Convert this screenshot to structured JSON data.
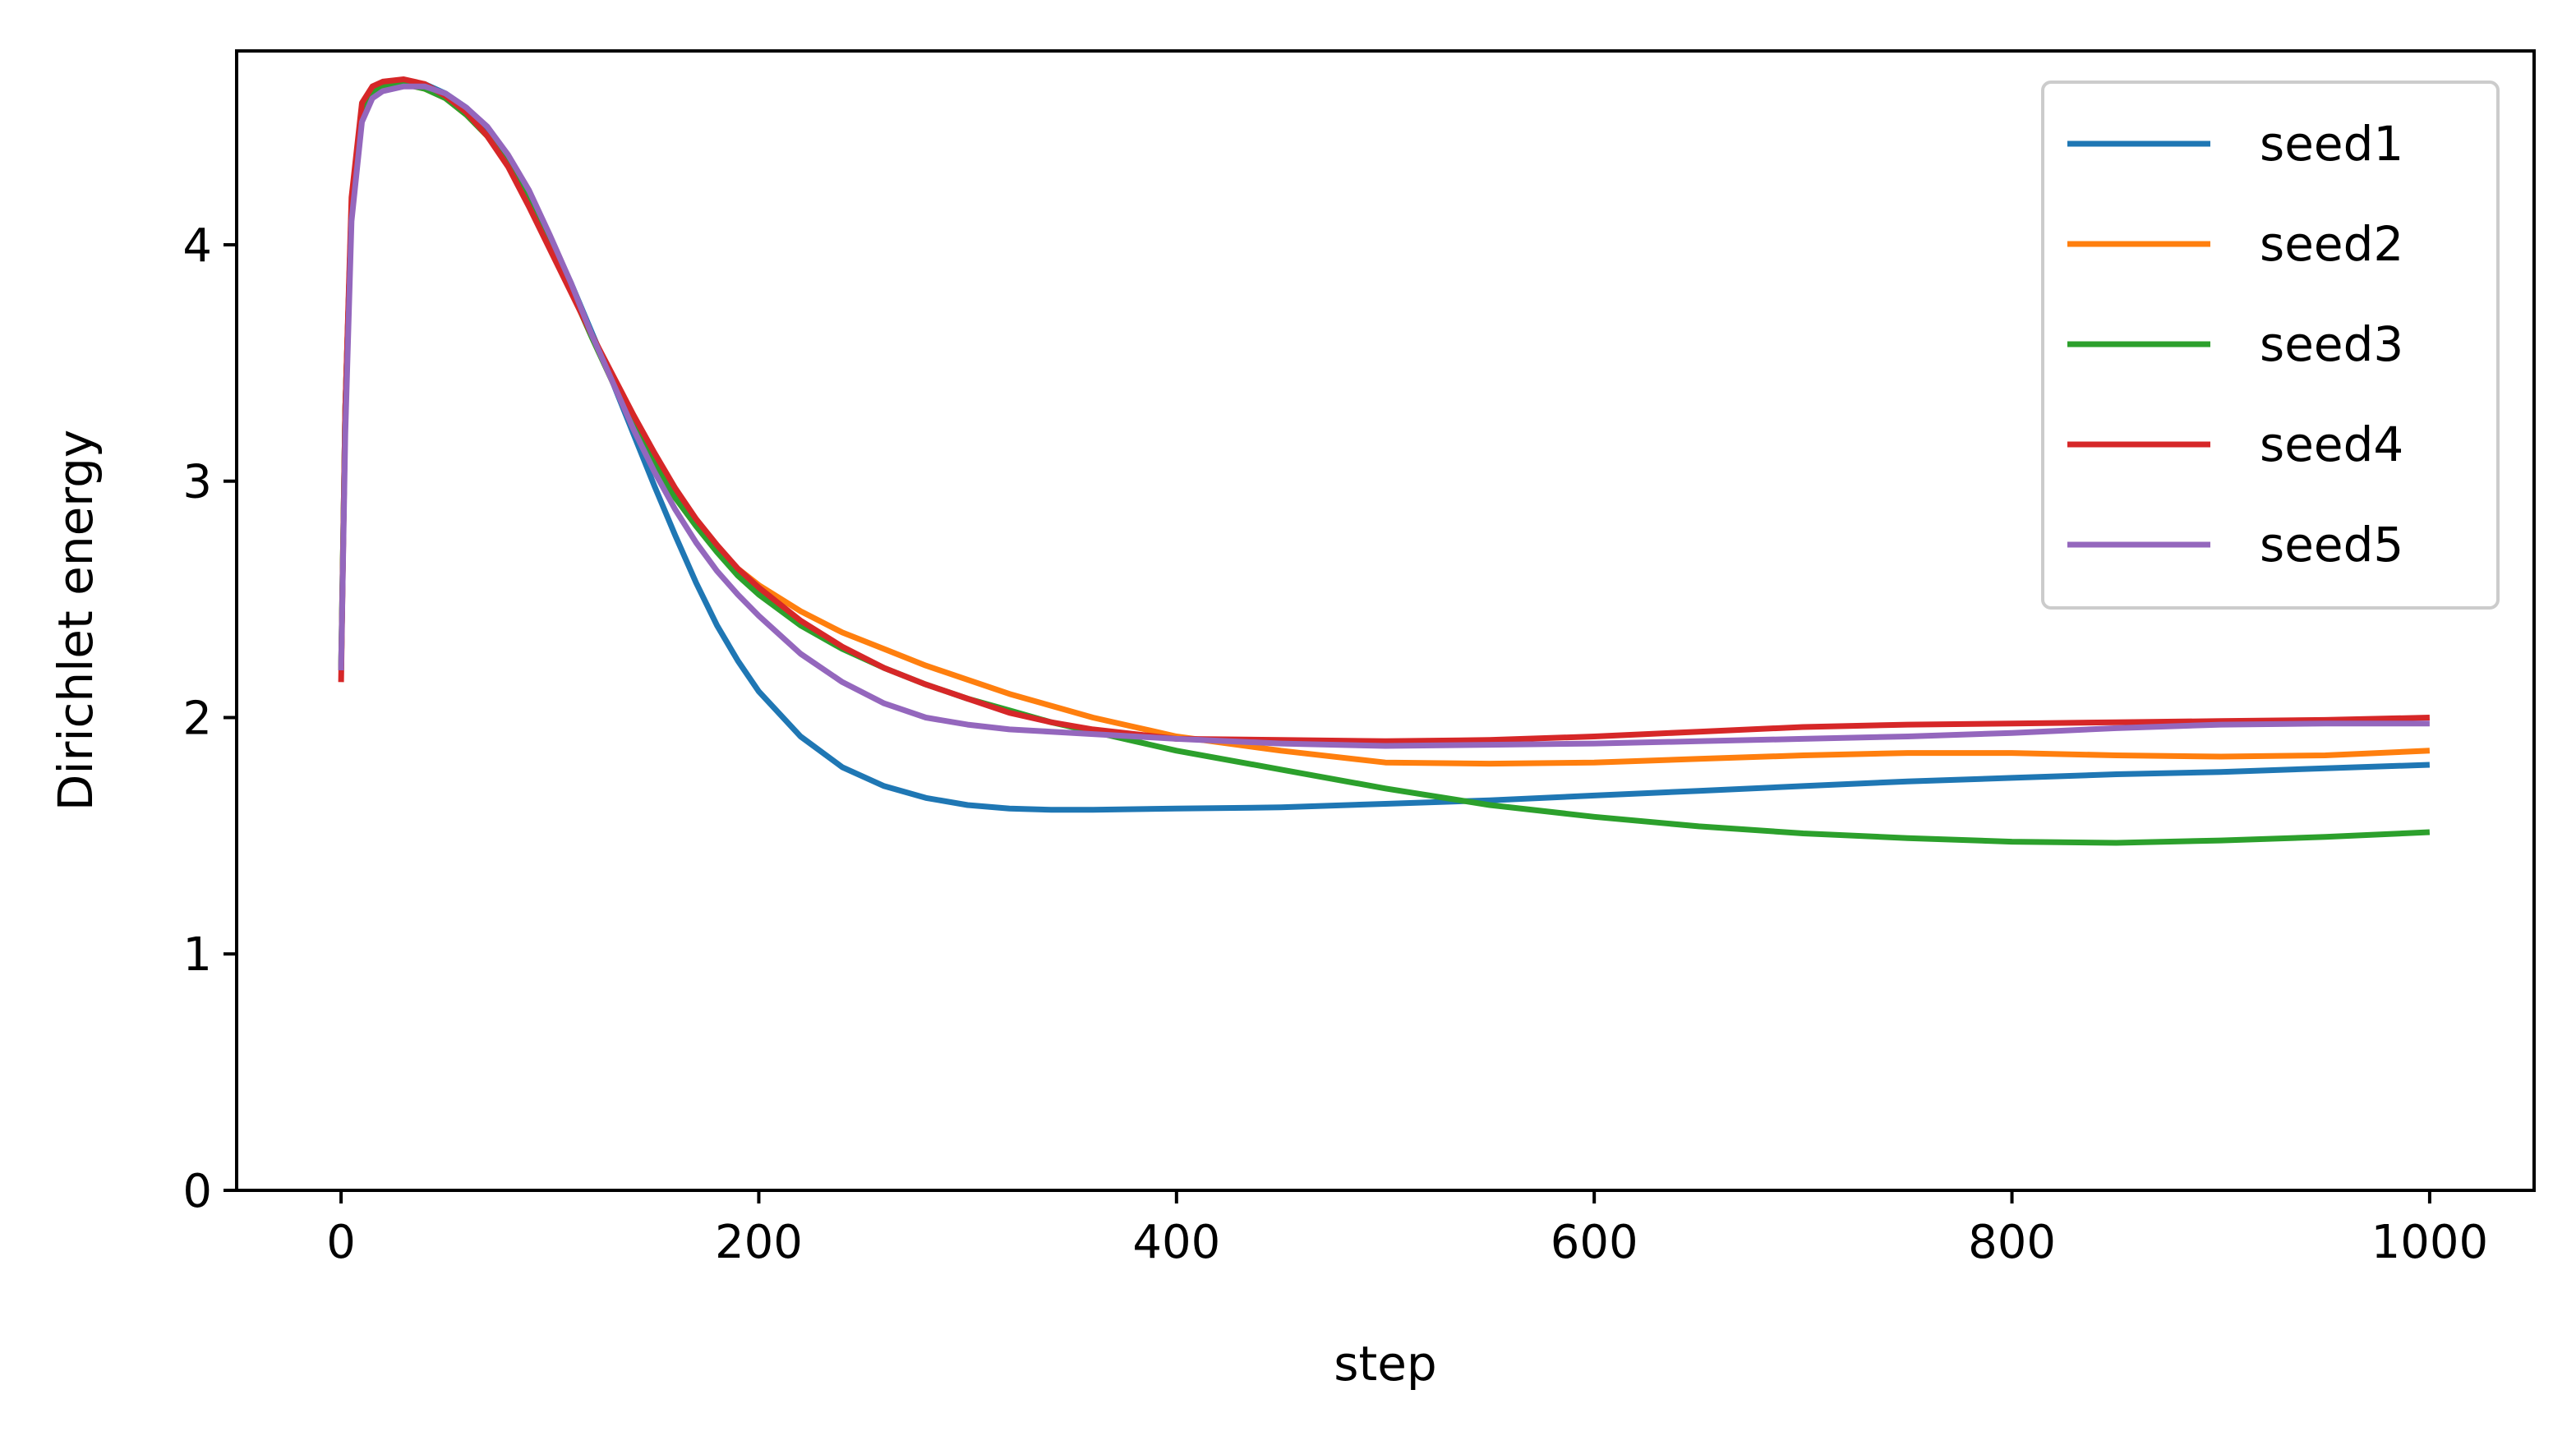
{
  "chart_data": {
    "type": "line",
    "title": "",
    "xlabel": "step",
    "ylabel": "Dirichlet energy",
    "xlim": [
      -50,
      1050
    ],
    "ylim": [
      0,
      4.82
    ],
    "xticks": [
      0,
      200,
      400,
      600,
      800,
      1000
    ],
    "yticks": [
      0,
      1,
      2,
      3,
      4
    ],
    "grid": false,
    "legend_position": "upper right",
    "series": [
      {
        "name": "seed1",
        "color": "#1f77b4",
        "x": [
          0,
          2,
          5,
          10,
          15,
          20,
          30,
          40,
          50,
          60,
          70,
          80,
          90,
          100,
          110,
          120,
          130,
          140,
          150,
          160,
          170,
          180,
          190,
          200,
          220,
          240,
          260,
          280,
          300,
          320,
          340,
          360,
          400,
          450,
          500,
          550,
          600,
          650,
          700,
          750,
          800,
          850,
          900,
          950,
          1000
        ],
        "y": [
          2.2,
          3.3,
          4.15,
          4.55,
          4.64,
          4.67,
          4.69,
          4.68,
          4.64,
          4.58,
          4.49,
          4.37,
          4.21,
          4.03,
          3.84,
          3.63,
          3.42,
          3.2,
          2.98,
          2.77,
          2.57,
          2.39,
          2.24,
          2.11,
          1.92,
          1.79,
          1.71,
          1.66,
          1.63,
          1.615,
          1.61,
          1.61,
          1.615,
          1.62,
          1.635,
          1.65,
          1.67,
          1.69,
          1.71,
          1.73,
          1.745,
          1.76,
          1.77,
          1.785,
          1.8
        ]
      },
      {
        "name": "seed2",
        "color": "#ff7f0e",
        "x": [
          0,
          2,
          5,
          10,
          15,
          20,
          30,
          40,
          50,
          60,
          70,
          80,
          90,
          100,
          110,
          120,
          130,
          140,
          150,
          160,
          170,
          180,
          190,
          200,
          220,
          240,
          260,
          280,
          300,
          320,
          340,
          360,
          380,
          400,
          450,
          500,
          550,
          600,
          650,
          700,
          750,
          800,
          850,
          900,
          950,
          1000
        ],
        "y": [
          2.2,
          3.3,
          4.15,
          4.55,
          4.64,
          4.67,
          4.68,
          4.66,
          4.62,
          4.55,
          4.46,
          4.34,
          4.18,
          4.0,
          3.81,
          3.61,
          3.42,
          3.24,
          3.08,
          2.93,
          2.81,
          2.71,
          2.63,
          2.56,
          2.45,
          2.36,
          2.29,
          2.22,
          2.16,
          2.1,
          2.05,
          2.0,
          1.96,
          1.92,
          1.86,
          1.81,
          1.805,
          1.81,
          1.825,
          1.84,
          1.85,
          1.85,
          1.84,
          1.835,
          1.84,
          1.86
        ]
      },
      {
        "name": "seed3",
        "color": "#2ca02c",
        "x": [
          0,
          2,
          5,
          10,
          15,
          20,
          30,
          40,
          50,
          60,
          70,
          80,
          90,
          100,
          110,
          120,
          130,
          140,
          150,
          160,
          170,
          180,
          190,
          200,
          220,
          240,
          260,
          280,
          300,
          320,
          340,
          360,
          380,
          400,
          450,
          500,
          550,
          600,
          650,
          700,
          750,
          800,
          850,
          900,
          950,
          1000
        ],
        "y": [
          2.2,
          3.3,
          4.15,
          4.55,
          4.64,
          4.67,
          4.68,
          4.66,
          4.62,
          4.55,
          4.46,
          4.34,
          4.18,
          4.0,
          3.81,
          3.61,
          3.42,
          3.24,
          3.08,
          2.93,
          2.81,
          2.7,
          2.6,
          2.52,
          2.39,
          2.29,
          2.21,
          2.14,
          2.08,
          2.03,
          1.98,
          1.94,
          1.9,
          1.86,
          1.78,
          1.7,
          1.63,
          1.58,
          1.54,
          1.51,
          1.49,
          1.475,
          1.47,
          1.48,
          1.495,
          1.515
        ]
      },
      {
        "name": "seed4",
        "color": "#d62728",
        "x": [
          0,
          2,
          5,
          10,
          15,
          20,
          30,
          40,
          50,
          60,
          70,
          80,
          90,
          100,
          110,
          120,
          130,
          140,
          150,
          160,
          170,
          180,
          190,
          200,
          220,
          240,
          260,
          280,
          300,
          320,
          340,
          360,
          380,
          400,
          450,
          500,
          550,
          600,
          650,
          700,
          750,
          800,
          850,
          900,
          950,
          1000
        ],
        "y": [
          2.15,
          3.3,
          4.2,
          4.6,
          4.67,
          4.69,
          4.7,
          4.68,
          4.63,
          4.56,
          4.46,
          4.33,
          4.16,
          3.98,
          3.8,
          3.62,
          3.45,
          3.28,
          3.12,
          2.97,
          2.84,
          2.73,
          2.63,
          2.55,
          2.41,
          2.3,
          2.21,
          2.14,
          2.08,
          2.02,
          1.98,
          1.95,
          1.93,
          1.91,
          1.905,
          1.9,
          1.905,
          1.92,
          1.94,
          1.96,
          1.97,
          1.975,
          1.98,
          1.985,
          1.99,
          2.0
        ]
      },
      {
        "name": "seed5",
        "color": "#9467bd",
        "x": [
          0,
          2,
          5,
          10,
          15,
          20,
          30,
          40,
          50,
          60,
          70,
          80,
          90,
          100,
          110,
          120,
          130,
          140,
          150,
          160,
          170,
          180,
          190,
          200,
          220,
          240,
          260,
          280,
          300,
          320,
          340,
          360,
          380,
          400,
          450,
          500,
          550,
          600,
          650,
          700,
          750,
          800,
          850,
          900,
          950,
          1000
        ],
        "y": [
          2.2,
          3.2,
          4.1,
          4.52,
          4.62,
          4.65,
          4.67,
          4.67,
          4.64,
          4.58,
          4.5,
          4.38,
          4.23,
          4.04,
          3.84,
          3.62,
          3.42,
          3.22,
          3.04,
          2.88,
          2.74,
          2.62,
          2.52,
          2.43,
          2.27,
          2.15,
          2.06,
          2.0,
          1.97,
          1.95,
          1.94,
          1.93,
          1.92,
          1.91,
          1.89,
          1.88,
          1.885,
          1.89,
          1.9,
          1.91,
          1.92,
          1.935,
          1.955,
          1.97,
          1.975,
          1.975
        ]
      }
    ]
  }
}
